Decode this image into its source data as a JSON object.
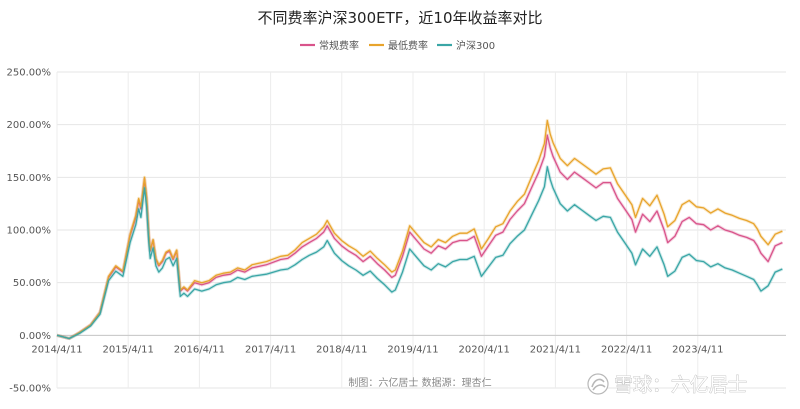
{
  "chart_data": {
    "type": "line",
    "title": "不同费率沪深300ETF，近10年收益率对比",
    "xlabel": "",
    "ylabel": "",
    "x_ticks": [
      "2014/4/11",
      "2015/4/11",
      "2016/4/11",
      "2017/4/11",
      "2018/4/11",
      "2019/4/11",
      "2020/4/11",
      "2021/4/11",
      "2022/4/11",
      "2023/4/11"
    ],
    "y_ticks": [
      "-50.00%",
      "0.00%",
      "50.00%",
      "100.00%",
      "150.00%",
      "200.00%",
      "250.00%"
    ],
    "ylim": [
      -50,
      250
    ],
    "xlim": [
      2014.28,
      2024.45
    ],
    "grid": true,
    "legend_position": "top-center",
    "x": [
      2014.28,
      2014.45,
      2014.6,
      2014.75,
      2014.88,
      2015.0,
      2015.1,
      2015.2,
      2015.3,
      2015.38,
      2015.42,
      2015.45,
      2015.5,
      2015.53,
      2015.56,
      2015.58,
      2015.62,
      2015.66,
      2015.7,
      2015.75,
      2015.8,
      2015.85,
      2015.9,
      2015.95,
      2016.0,
      2016.05,
      2016.1,
      2016.2,
      2016.3,
      2016.4,
      2016.5,
      2016.6,
      2016.7,
      2016.8,
      2016.9,
      2017.0,
      2017.2,
      2017.4,
      2017.5,
      2017.6,
      2017.7,
      2017.8,
      2017.9,
      2018.0,
      2018.05,
      2018.15,
      2018.25,
      2018.35,
      2018.45,
      2018.55,
      2018.65,
      2018.75,
      2018.85,
      2018.95,
      2019.0,
      2019.1,
      2019.2,
      2019.3,
      2019.4,
      2019.5,
      2019.6,
      2019.7,
      2019.8,
      2019.9,
      2020.0,
      2020.1,
      2020.2,
      2020.3,
      2020.4,
      2020.5,
      2020.6,
      2020.7,
      2020.8,
      2020.9,
      2021.0,
      2021.08,
      2021.12,
      2021.16,
      2021.2,
      2021.3,
      2021.4,
      2021.5,
      2021.6,
      2021.7,
      2021.8,
      2021.9,
      2022.0,
      2022.1,
      2022.2,
      2022.3,
      2022.35,
      2022.45,
      2022.55,
      2022.65,
      2022.75,
      2022.8,
      2022.9,
      2023.0,
      2023.1,
      2023.2,
      2023.3,
      2023.4,
      2023.5,
      2023.6,
      2023.7,
      2023.8,
      2023.9,
      2024.0,
      2024.05,
      2024.1,
      2024.2,
      2024.3,
      2024.4
    ],
    "series": [
      {
        "name": "常规费率",
        "color": "#d9548b",
        "values": [
          0,
          -3,
          3,
          10,
          22,
          55,
          65,
          60,
          95,
          112,
          128,
          120,
          148,
          130,
          95,
          80,
          90,
          72,
          66,
          70,
          78,
          80,
          72,
          80,
          42,
          45,
          42,
          50,
          48,
          50,
          55,
          57,
          58,
          62,
          60,
          64,
          67,
          72,
          73,
          78,
          84,
          88,
          92,
          98,
          104,
          92,
          85,
          80,
          76,
          70,
          75,
          68,
          62,
          55,
          57,
          75,
          98,
          90,
          82,
          78,
          85,
          82,
          88,
          90,
          90,
          94,
          75,
          85,
          95,
          98,
          110,
          118,
          125,
          140,
          155,
          170,
          190,
          178,
          170,
          155,
          148,
          155,
          150,
          145,
          140,
          145,
          145,
          130,
          120,
          110,
          98,
          115,
          108,
          118,
          100,
          88,
          94,
          108,
          112,
          106,
          105,
          100,
          104,
          100,
          98,
          95,
          93,
          90,
          85,
          78,
          70,
          85,
          88
        ]
      },
      {
        "name": "最低费率",
        "color": "#e8a42c",
        "values": [
          0,
          -3,
          3,
          10,
          22,
          56,
          66,
          61,
          96,
          114,
          130,
          122,
          150,
          132,
          96,
          81,
          91,
          73,
          67,
          71,
          79,
          81,
          73,
          81,
          43,
          46,
          43,
          52,
          50,
          52,
          57,
          59,
          60,
          64,
          62,
          67,
          70,
          75,
          76,
          81,
          88,
          92,
          96,
          103,
          109,
          97,
          90,
          85,
          81,
          75,
          80,
          73,
          67,
          60,
          62,
          80,
          104,
          96,
          88,
          84,
          91,
          88,
          94,
          97,
          97,
          101,
          82,
          92,
          103,
          106,
          118,
          127,
          134,
          150,
          166,
          182,
          204,
          191,
          183,
          168,
          161,
          168,
          163,
          158,
          153,
          158,
          159,
          144,
          134,
          124,
          112,
          130,
          123,
          133,
          115,
          103,
          109,
          124,
          128,
          122,
          121,
          116,
          120,
          116,
          114,
          111,
          109,
          106,
          101,
          94,
          86,
          96,
          99
        ]
      },
      {
        "name": "沪深300",
        "color": "#3aa6a6",
        "values": [
          0,
          -3,
          2,
          9,
          20,
          52,
          61,
          56,
          88,
          105,
          120,
          112,
          140,
          122,
          88,
          73,
          83,
          66,
          60,
          64,
          72,
          74,
          66,
          73,
          37,
          40,
          37,
          44,
          42,
          44,
          48,
          50,
          51,
          55,
          53,
          56,
          58,
          62,
          63,
          67,
          72,
          76,
          79,
          84,
          90,
          78,
          71,
          66,
          62,
          57,
          61,
          54,
          48,
          41,
          43,
          60,
          82,
          74,
          66,
          62,
          68,
          65,
          70,
          72,
          72,
          75,
          56,
          65,
          74,
          76,
          87,
          94,
          100,
          114,
          128,
          141,
          160,
          148,
          140,
          125,
          118,
          124,
          119,
          114,
          109,
          113,
          112,
          98,
          88,
          78,
          67,
          82,
          75,
          84,
          67,
          56,
          61,
          74,
          77,
          71,
          70,
          65,
          68,
          64,
          62,
          59,
          56,
          53,
          48,
          42,
          47,
          60,
          63
        ]
      }
    ]
  },
  "credit_text": "制图：六亿居士  数据源：理杏仁",
  "watermark": {
    "icon": "snowball-logo-icon",
    "text": "雪球：六亿居士"
  }
}
